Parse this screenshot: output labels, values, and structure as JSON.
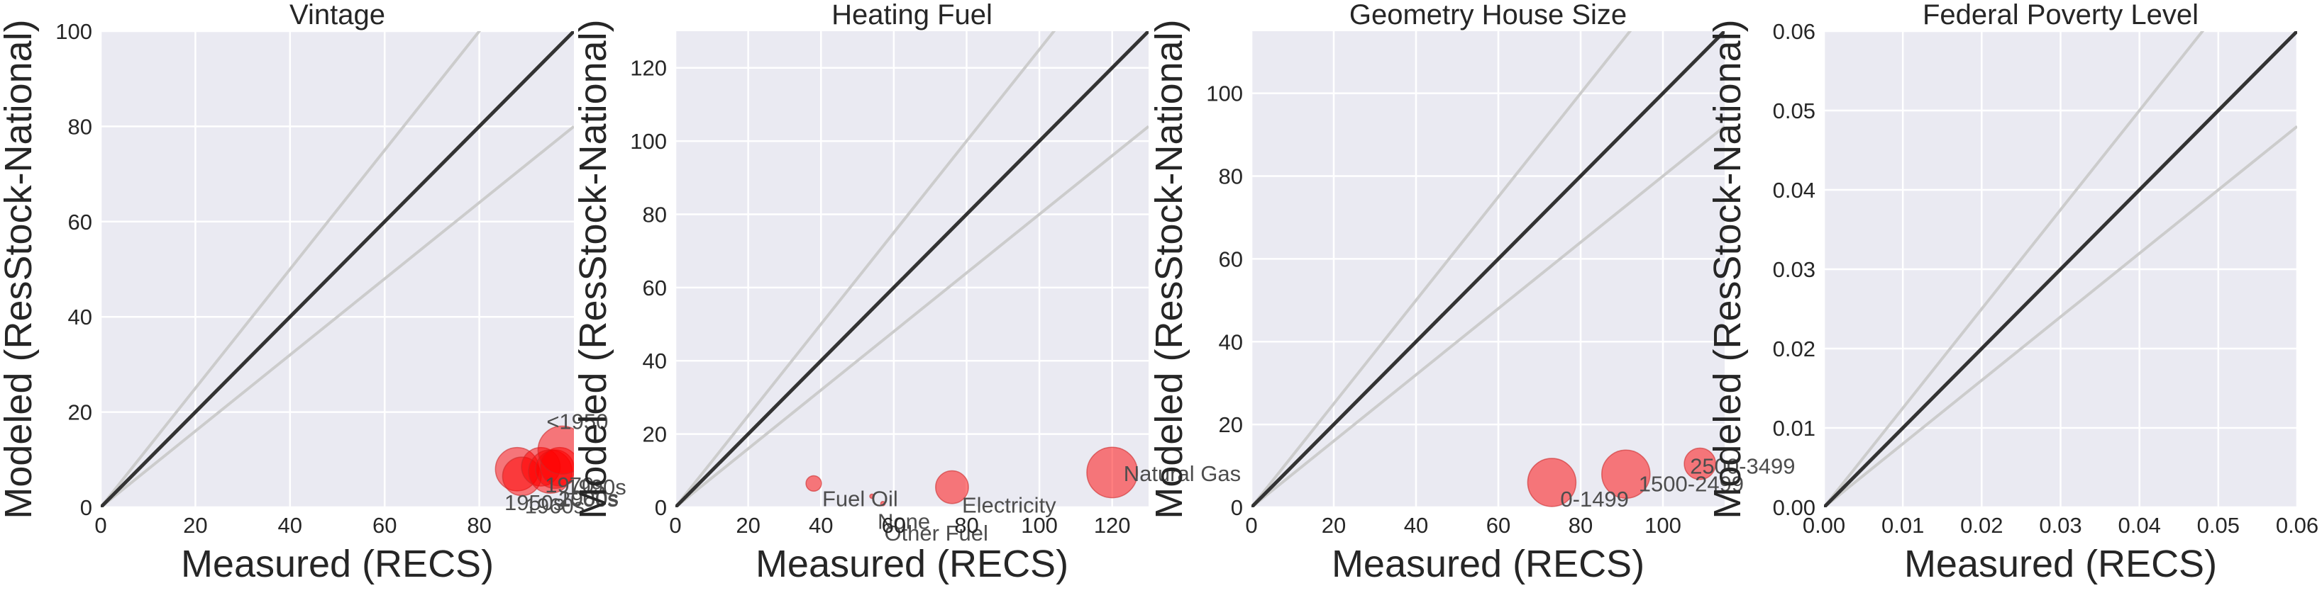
{
  "chart_data": [
    {
      "type": "scatter",
      "title": "Vintage",
      "xlabel": "Measured (RECS)",
      "ylabel": "Modeled (ResStock-National)",
      "xlim": [
        0,
        100
      ],
      "ylim": [
        0,
        100
      ],
      "xticks": [
        0,
        20,
        40,
        60,
        80
      ],
      "yticks": [
        0,
        20,
        40,
        60,
        80,
        100
      ],
      "ticklabel_decimals": 0,
      "points": [
        {
          "label": "1950s",
          "x": 88,
          "y": 8,
          "size": 9
        },
        {
          "label": "1960s",
          "x": 89,
          "y": 6.5,
          "size": 8
        },
        {
          "label": "1970s",
          "x": 93,
          "y": 8.5,
          "size": 8
        },
        {
          "label": "1980s",
          "x": 95,
          "y": 7.5,
          "size": 9
        },
        {
          "label": "1990s",
          "x": 96,
          "y": 8,
          "size": 8
        },
        {
          "label": "2000s",
          "x": 97,
          "y": 8.5,
          "size": 8
        },
        {
          "label": "<1950",
          "x": 97.5,
          "y": 12,
          "size": 10
        }
      ]
    },
    {
      "type": "scatter",
      "title": "Heating Fuel",
      "xlabel": "Measured (RECS)",
      "ylabel": "Modeled (ResStock-National)",
      "xlim": [
        0,
        130
      ],
      "ylim": [
        0,
        130
      ],
      "xticks": [
        0,
        20,
        40,
        60,
        80,
        100,
        120
      ],
      "yticks": [
        0,
        20,
        40,
        60,
        80,
        100,
        120
      ],
      "ticklabel_decimals": 0,
      "points": [
        {
          "label": "Fuel Oil",
          "x": 38,
          "y": 6.5,
          "size": 3.2
        },
        {
          "label": "None",
          "x": 54,
          "y": 3,
          "size": 0.9
        },
        {
          "label": "Other Fuel",
          "x": 57,
          "y": 1,
          "size": 0.9
        },
        {
          "label": "Electricity",
          "x": 76,
          "y": 5.5,
          "size": 6.8
        },
        {
          "label": "Natural Gas",
          "x": 120,
          "y": 9.5,
          "size": 10.5
        }
      ]
    },
    {
      "type": "scatter",
      "title": "Geometry House Size",
      "xlabel": "Measured (RECS)",
      "ylabel": "Modeled (ResStock-National)",
      "xlim": [
        0,
        115
      ],
      "ylim": [
        0,
        115
      ],
      "xticks": [
        0,
        20,
        40,
        60,
        80,
        100
      ],
      "yticks": [
        0,
        20,
        40,
        60,
        80,
        100
      ],
      "ticklabel_decimals": 0,
      "points": [
        {
          "label": "0-1499",
          "x": 73,
          "y": 6,
          "size": 10
        },
        {
          "label": "1500-2499",
          "x": 91,
          "y": 8,
          "size": 10
        },
        {
          "label": "2500-3499",
          "x": 109,
          "y": 10.5,
          "size": 6.5
        }
      ]
    },
    {
      "type": "scatter",
      "title": "Federal Poverty Level",
      "xlabel": "Measured (RECS)",
      "ylabel": "Modeled (ResStock-National)",
      "xlim": [
        0,
        0.06
      ],
      "ylim": [
        0,
        0.06
      ],
      "xticks": [
        0,
        0.01,
        0.02,
        0.03,
        0.04,
        0.05,
        0.06
      ],
      "yticks": [
        0,
        0.01,
        0.02,
        0.03,
        0.04,
        0.05,
        0.06
      ],
      "ticklabel_decimals": 2,
      "points": []
    }
  ],
  "colors": {
    "axes_background": "#eaeaf2",
    "grid": "#ffffff",
    "identity_line": "#333333",
    "band_lines": "#cccccc",
    "marker_fill": "#ff0000",
    "marker_edge": "#cc2a2a"
  }
}
